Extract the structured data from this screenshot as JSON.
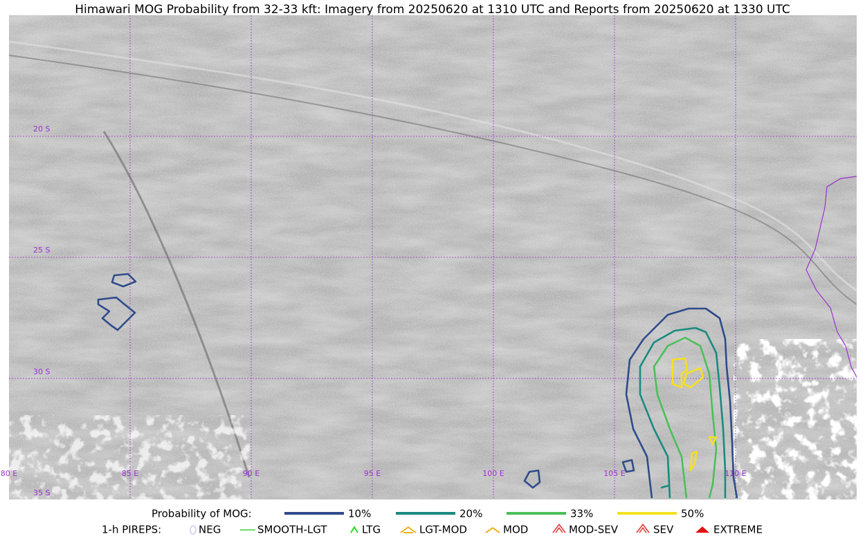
{
  "title": "Himawari MOG Probability from 32-33 kft: Imagery from 20250620 at 1310 UTC and Reports from 20250620 at 1330 UTC",
  "grid_labels": {
    "lat": [
      "20 S",
      "25 S",
      "30 S",
      "35 S"
    ],
    "lon": [
      "80 E",
      "85 E",
      "90 E",
      "95 E",
      "100 E",
      "105 E",
      "110 E"
    ]
  },
  "legend": {
    "probability": {
      "label": "Probability of MOG:",
      "items": [
        "10%",
        "20%",
        "33%",
        "50%"
      ]
    },
    "pireps": {
      "label": "1-h PIREPS:",
      "items": [
        "NEG",
        "SMOOTH-LGT",
        "LTG",
        "LGT-MOD",
        "MOD",
        "MOD-SEV",
        "SEV",
        "EXTREME"
      ]
    }
  }
}
